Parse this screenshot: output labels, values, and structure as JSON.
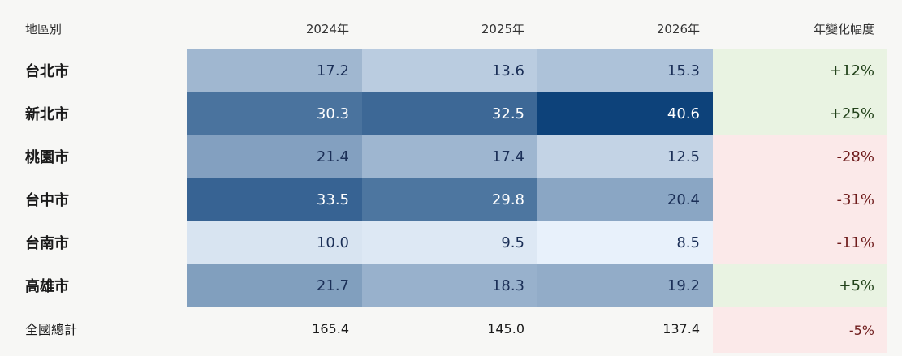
{
  "chart_data": {
    "type": "table",
    "columns": [
      "地區別",
      "2024年",
      "2025年",
      "2026年",
      "年變化幅度"
    ],
    "rows": [
      {
        "region": "台北市",
        "values": [
          17.2,
          13.6,
          15.3
        ],
        "change": "+12%"
      },
      {
        "region": "新北市",
        "values": [
          30.3,
          32.5,
          40.6
        ],
        "change": "+25%"
      },
      {
        "region": "桃園市",
        "values": [
          21.4,
          17.4,
          12.5
        ],
        "change": "-28%"
      },
      {
        "region": "台中市",
        "values": [
          33.5,
          29.8,
          20.4
        ],
        "change": "-31%"
      },
      {
        "region": "台南市",
        "values": [
          10.0,
          9.5,
          8.5
        ],
        "change": "-11%"
      },
      {
        "region": "高雄市",
        "values": [
          21.7,
          18.3,
          19.2
        ],
        "change": "+5%"
      }
    ],
    "total": {
      "label": "全國總計",
      "values": [
        "165.4",
        "145.0",
        "137.4"
      ],
      "change": "-5%"
    },
    "colors": {
      "heat_low": "#e8f1fb",
      "heat_high": "#0d427a",
      "text_dark": "#1b2f57",
      "text_light": "#ffffff",
      "positive_bg": "#e9f3e2",
      "positive_text": "#22421a",
      "negative_bg": "#fbe9e9",
      "negative_text": "#6e1b1b"
    }
  }
}
